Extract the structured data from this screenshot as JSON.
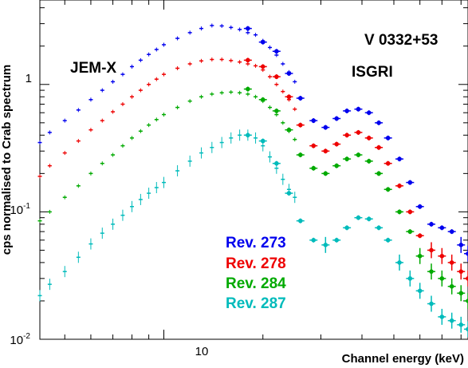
{
  "chart_data": {
    "type": "scatter",
    "title": "",
    "xlabel": "Channel energy (keV)",
    "ylabel": "cps normalised to Crab spectrum",
    "xscale": "log",
    "yscale": "log",
    "xlim": [
      4.2,
      84
    ],
    "ylim": [
      0.01,
      4.6
    ],
    "xticks": [
      {
        "value": 10,
        "label": "10"
      }
    ],
    "yticks": [
      {
        "value": 1,
        "label": "1"
      },
      {
        "value": 0.1,
        "label": "10^-1",
        "base": "10",
        "exp": "-1"
      },
      {
        "value": 0.01,
        "label": "10^-2",
        "base": "10",
        "exp": "-2"
      }
    ],
    "grid": false,
    "legend_position": "bottom-center",
    "annotations": [
      {
        "text": "V 0332+53"
      },
      {
        "text": "JEM-X"
      },
      {
        "text": "ISGRI"
      }
    ],
    "series": [
      {
        "name": "Rev. 273",
        "color": "#0000ee",
        "jemx_x": [
          4.2,
          4.5,
          5.0,
          5.5,
          6.0,
          6.5,
          7.0,
          7.5,
          8.0,
          8.5,
          9.0,
          9.5,
          10.0,
          11.0,
          12.0,
          13.0,
          14.0,
          15.0,
          16.0,
          17.0,
          18.0,
          19.0,
          20.0,
          21.0,
          22.0,
          23.0,
          24.0,
          25.0
        ],
        "jemx_y": [
          0.35,
          0.42,
          0.52,
          0.63,
          0.76,
          0.9,
          1.05,
          1.2,
          1.38,
          1.55,
          1.72,
          1.88,
          2.05,
          2.3,
          2.55,
          2.75,
          2.9,
          2.88,
          2.8,
          2.7,
          2.55,
          2.45,
          2.2,
          1.95,
          1.7,
          1.45,
          1.25,
          1.05
        ],
        "isgri_x": [
          18.0,
          20.0,
          22.0,
          24.0,
          26.0,
          28.5,
          31.0,
          33.5,
          36.0,
          39.0,
          42.0,
          45.0,
          48.0,
          52.0,
          56.0,
          60.0,
          65.0,
          70.0,
          75.0,
          80.0,
          84.0
        ],
        "isgri_y": [
          2.75,
          2.15,
          1.82,
          1.22,
          0.78,
          0.52,
          0.46,
          0.54,
          0.62,
          0.64,
          0.6,
          0.5,
          0.38,
          0.26,
          0.17,
          0.11,
          0.08,
          0.075,
          0.07,
          0.055,
          0.047
        ]
      },
      {
        "name": "Rev. 278",
        "color": "#ee0000",
        "jemx_x": [
          4.2,
          4.5,
          5.0,
          5.5,
          6.0,
          6.5,
          7.0,
          7.5,
          8.0,
          8.5,
          9.0,
          9.5,
          10.0,
          11.0,
          12.0,
          13.0,
          14.0,
          15.0,
          16.0,
          17.0,
          18.0,
          19.0,
          20.0,
          21.0,
          22.0,
          23.0,
          24.0,
          25.0
        ],
        "jemx_y": [
          0.19,
          0.23,
          0.29,
          0.36,
          0.44,
          0.52,
          0.61,
          0.7,
          0.8,
          0.9,
          1.0,
          1.1,
          1.2,
          1.34,
          1.45,
          1.53,
          1.57,
          1.57,
          1.54,
          1.5,
          1.45,
          1.4,
          1.3,
          1.15,
          1.0,
          0.88,
          0.76,
          0.64
        ],
        "isgri_x": [
          18.0,
          20.0,
          22.0,
          24.0,
          26.0,
          28.5,
          31.0,
          33.5,
          36.0,
          39.0,
          42.0,
          45.0,
          48.0,
          52.0,
          56.0,
          60.0,
          65.0,
          70.0,
          75.0,
          80.0,
          84.0
        ],
        "isgri_y": [
          1.55,
          1.38,
          1.15,
          0.8,
          0.48,
          0.33,
          0.3,
          0.34,
          0.4,
          0.42,
          0.38,
          0.32,
          0.24,
          0.16,
          0.1,
          0.065,
          0.05,
          0.045,
          0.04,
          0.034,
          0.03
        ]
      },
      {
        "name": "Rev. 284",
        "color": "#00aa00",
        "jemx_x": [
          4.2,
          4.5,
          5.0,
          5.5,
          6.0,
          6.5,
          7.0,
          7.5,
          8.0,
          8.5,
          9.0,
          9.5,
          10.0,
          11.0,
          12.0,
          13.0,
          14.0,
          15.0,
          16.0,
          17.0,
          18.0,
          19.0,
          20.0,
          21.0,
          22.0,
          23.0,
          24.0,
          25.0
        ],
        "jemx_y": [
          0.085,
          0.1,
          0.13,
          0.16,
          0.2,
          0.24,
          0.28,
          0.33,
          0.38,
          0.43,
          0.48,
          0.53,
          0.58,
          0.66,
          0.74,
          0.8,
          0.84,
          0.86,
          0.87,
          0.86,
          0.84,
          0.8,
          0.74,
          0.66,
          0.58,
          0.5,
          0.43,
          0.37
        ],
        "isgri_x": [
          18.0,
          20.0,
          22.0,
          24.0,
          26.0,
          28.5,
          31.0,
          33.5,
          36.0,
          39.0,
          42.0,
          45.0,
          48.0,
          52.0,
          56.0,
          60.0,
          65.0,
          70.0,
          75.0,
          80.0,
          84.0
        ],
        "isgri_y": [
          0.92,
          0.76,
          0.62,
          0.44,
          0.28,
          0.22,
          0.2,
          0.23,
          0.26,
          0.28,
          0.25,
          0.2,
          0.15,
          0.1,
          0.07,
          0.045,
          0.034,
          0.03,
          0.026,
          0.023,
          0.02
        ]
      },
      {
        "name": "Rev. 287",
        "color": "#00bbbb",
        "jemx_x": [
          4.2,
          4.5,
          5.0,
          5.5,
          6.0,
          6.5,
          7.0,
          7.5,
          8.0,
          8.5,
          9.0,
          9.5,
          10.0,
          11.0,
          12.0,
          13.0,
          14.0,
          15.0,
          16.0,
          17.0,
          18.0,
          19.0,
          20.0,
          21.0,
          22.0,
          23.0,
          24.0,
          25.0
        ],
        "jemx_y": [
          0.022,
          0.027,
          0.034,
          0.044,
          0.056,
          0.068,
          0.08,
          0.094,
          0.11,
          0.125,
          0.14,
          0.155,
          0.17,
          0.21,
          0.25,
          0.29,
          0.32,
          0.35,
          0.38,
          0.4,
          0.4,
          0.38,
          0.33,
          0.27,
          0.22,
          0.18,
          0.15,
          0.13
        ],
        "isgri_x": [
          18.0,
          20.0,
          22.0,
          24.0,
          26.0,
          28.5,
          31.0,
          33.5,
          36.0,
          39.0,
          42.0,
          45.0,
          48.0,
          52.0,
          56.0,
          60.0,
          65.0,
          70.0,
          75.0,
          80.0,
          84.0
        ],
        "isgri_y": [
          0.4,
          0.36,
          0.24,
          0.14,
          0.085,
          0.06,
          0.055,
          0.06,
          0.075,
          0.09,
          0.088,
          0.075,
          0.06,
          0.04,
          0.03,
          0.024,
          0.019,
          0.015,
          0.014,
          0.013,
          0.012
        ]
      }
    ]
  }
}
